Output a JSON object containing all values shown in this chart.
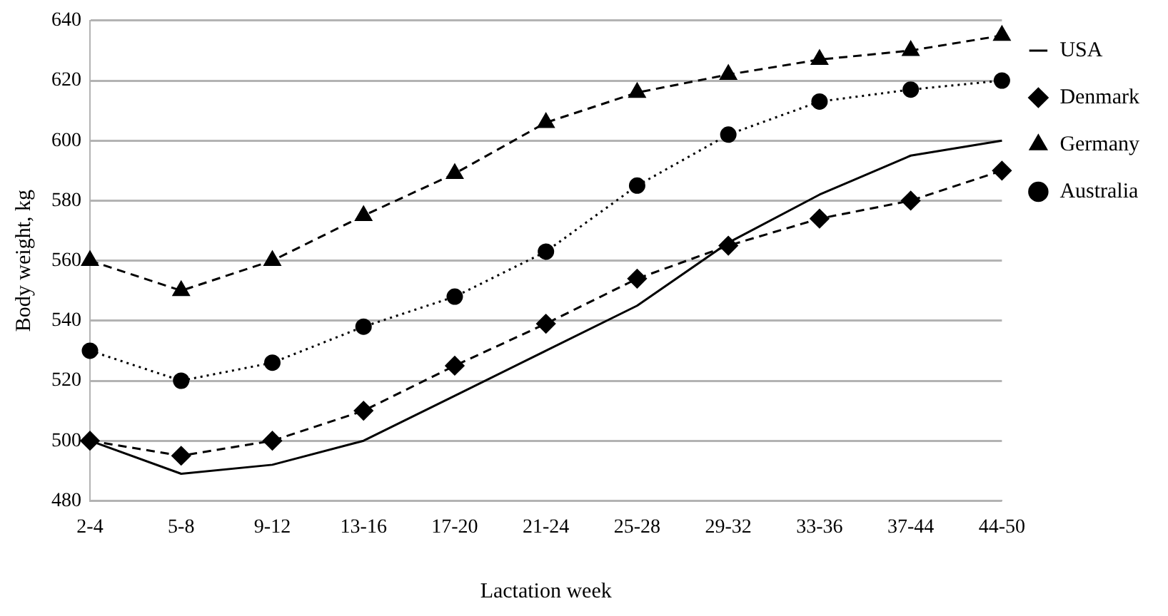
{
  "chart_data": {
    "type": "line",
    "xlabel": "Lactation week",
    "ylabel": "Body weight, kg",
    "categories": [
      "2-4",
      "5-8",
      "9-12",
      "13-16",
      "17-20",
      "21-24",
      "25-28",
      "29-32",
      "33-36",
      "37-44",
      "44-50"
    ],
    "ylim": [
      480,
      640
    ],
    "yticks": [
      480,
      500,
      520,
      540,
      560,
      580,
      600,
      620,
      640
    ],
    "grid": "y",
    "legend": "right",
    "series": [
      {
        "name": "USA",
        "color": "#000000",
        "marker": "none",
        "line_style": "solid",
        "values": [
          500,
          489,
          492,
          500,
          515,
          530,
          545,
          566,
          582,
          595,
          600
        ]
      },
      {
        "name": "Denmark",
        "color": "#000000",
        "marker": "diamond",
        "line_style": "dashed",
        "values": [
          500,
          495,
          500,
          510,
          525,
          539,
          554,
          565,
          574,
          580,
          590
        ]
      },
      {
        "name": "Germany",
        "color": "#000000",
        "marker": "triangle",
        "line_style": "dashed",
        "values": [
          560,
          550,
          560,
          575,
          589,
          606,
          616,
          622,
          627,
          630,
          635
        ]
      },
      {
        "name": "Australia",
        "color": "#000000",
        "marker": "circle",
        "line_style": "dotted",
        "values": [
          530,
          520,
          526,
          538,
          548,
          563,
          585,
          602,
          613,
          617,
          620
        ]
      }
    ]
  }
}
